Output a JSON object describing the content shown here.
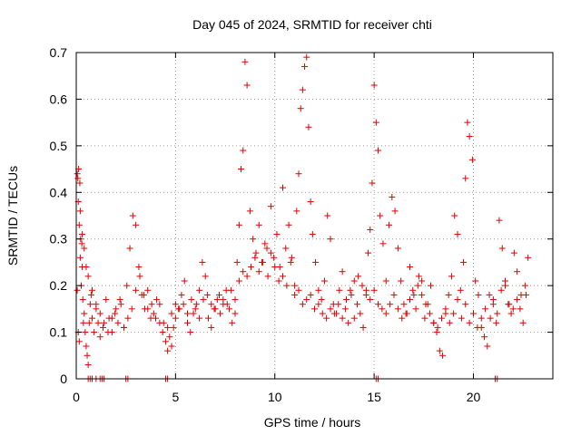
{
  "chart_data": {
    "type": "scatter",
    "title": "Day 045 of 2024, SRMTID for receiver chti",
    "xlabel": "GPS time / hours",
    "ylabel": "SRMTID / TECUs",
    "xlim": [
      0,
      24
    ],
    "ylim": [
      0,
      0.7
    ],
    "xticks": [
      0,
      5,
      10,
      15,
      20
    ],
    "yticks": [
      0,
      0.1,
      0.2,
      0.3,
      0.4,
      0.5,
      0.6,
      0.7
    ],
    "xtick_labels": [
      "0",
      "5",
      "10",
      "15",
      "20"
    ],
    "ytick_labels": [
      "0",
      "0.1",
      "0.2",
      "0.3",
      "0.4",
      "0.5",
      "0.6",
      "0.7"
    ],
    "grid": true,
    "marker": "+",
    "series": [
      {
        "name": "SRMTID",
        "color": "#e00000",
        "x": [
          0.05,
          0.08,
          0.1,
          0.12,
          0.15,
          0.18,
          0.2,
          0.22,
          0.25,
          0.28,
          0.3,
          0.33,
          0.36,
          0.4,
          0.45,
          0.5,
          0.55,
          0.6,
          0.65,
          0.7,
          0.75,
          0.8,
          0.9,
          1.0,
          1.1,
          1.2,
          1.35,
          1.5,
          1.65,
          1.8,
          1.95,
          2.1,
          2.25,
          2.4,
          2.55,
          2.7,
          2.85,
          3.0,
          3.15,
          3.3,
          3.45,
          3.6,
          3.75,
          3.9,
          4.05,
          4.2,
          4.35,
          4.5,
          4.6,
          4.7,
          4.8,
          4.9,
          5.0,
          5.15,
          5.3,
          5.45,
          5.6,
          5.75,
          5.9,
          6.05,
          6.2,
          6.35,
          6.5,
          6.65,
          6.8,
          6.95,
          7.1,
          7.25,
          7.4,
          7.55,
          7.7,
          7.85,
          8.0,
          8.1,
          8.2,
          8.3,
          8.4,
          8.5,
          8.6,
          8.75,
          8.9,
          9.05,
          9.2,
          9.35,
          9.5,
          9.65,
          9.8,
          9.95,
          10.1,
          10.25,
          10.4,
          10.55,
          10.7,
          10.85,
          11.0,
          11.1,
          11.2,
          11.3,
          11.4,
          11.5,
          11.6,
          11.7,
          11.8,
          11.9,
          12.05,
          12.2,
          12.35,
          12.5,
          12.65,
          12.8,
          12.95,
          13.1,
          13.25,
          13.4,
          13.55,
          13.7,
          13.85,
          14.0,
          14.15,
          14.3,
          14.45,
          14.6,
          14.7,
          14.8,
          14.9,
          15.0,
          15.1,
          15.2,
          15.3,
          15.45,
          15.6,
          15.75,
          15.9,
          16.05,
          16.2,
          16.35,
          16.5,
          16.65,
          16.8,
          16.95,
          17.1,
          17.25,
          17.4,
          17.55,
          17.7,
          17.85,
          18.0,
          18.15,
          18.3,
          18.45,
          18.6,
          18.75,
          18.9,
          19.05,
          19.2,
          19.35,
          19.5,
          19.6,
          19.7,
          19.8,
          19.95,
          20.1,
          20.25,
          20.4,
          20.55,
          20.7,
          20.85,
          21.0,
          21.15,
          21.3,
          21.45,
          21.6,
          21.75,
          21.9,
          22.05,
          22.2,
          22.35,
          22.5,
          22.65,
          22.75,
          0.05,
          0.1,
          0.15,
          0.2,
          0.3,
          0.4,
          0.5,
          0.6,
          0.8,
          1.0,
          1.2,
          1.4,
          1.6,
          1.8,
          2.0,
          2.2,
          2.4,
          2.6,
          2.8,
          3.0,
          3.2,
          3.4,
          3.6,
          3.8,
          4.0,
          4.2,
          4.4,
          4.6,
          4.8,
          5.0,
          5.2,
          5.4,
          5.6,
          5.8,
          6.0,
          6.2,
          6.4,
          6.6,
          6.8,
          7.0,
          7.2,
          7.4,
          7.6,
          7.8,
          8.0,
          8.2,
          8.4,
          8.6,
          8.8,
          9.0,
          9.2,
          9.4,
          9.6,
          9.8,
          10.0,
          10.2,
          10.4,
          10.6,
          10.8,
          11.0,
          11.2,
          11.4,
          11.6,
          11.8,
          12.0,
          12.2,
          12.4,
          12.6,
          12.8,
          13.0,
          13.2,
          13.4,
          13.6,
          13.8,
          14.0,
          14.2,
          14.4,
          14.6,
          14.8,
          15.0,
          15.2,
          15.4,
          15.6,
          15.8,
          16.0,
          16.2,
          16.4,
          16.6,
          16.8,
          17.0,
          17.2,
          17.4,
          17.6,
          17.8,
          18.0,
          18.2,
          18.4,
          18.6,
          18.8,
          19.0,
          19.2,
          19.4,
          19.6,
          19.8,
          20.0,
          20.2,
          20.4,
          20.6,
          20.8,
          21.0,
          21.2,
          21.4,
          21.6,
          21.8,
          22.0,
          22.2,
          22.4,
          22.6,
          0.6,
          0.7,
          0.8,
          1.0,
          1.2,
          1.3,
          1.4,
          2.5,
          2.6,
          4.5,
          4.6,
          15.1,
          15.2,
          21.1,
          21.2
        ],
        "y": [
          0.44,
          0.43,
          0.38,
          0.45,
          0.33,
          0.42,
          0.26,
          0.3,
          0.2,
          0.29,
          0.24,
          0.17,
          0.12,
          0.14,
          0.1,
          0.07,
          0.05,
          0.03,
          0.12,
          0.16,
          0.18,
          0.13,
          0.1,
          0.15,
          0.12,
          0.09,
          0.11,
          0.17,
          0.13,
          0.1,
          0.14,
          0.12,
          0.16,
          0.11,
          0.2,
          0.28,
          0.35,
          0.33,
          0.24,
          0.18,
          0.15,
          0.19,
          0.13,
          0.14,
          0.17,
          0.12,
          0.1,
          0.08,
          0.06,
          0.09,
          0.07,
          0.11,
          0.13,
          0.15,
          0.18,
          0.21,
          0.12,
          0.1,
          0.14,
          0.16,
          0.19,
          0.25,
          0.22,
          0.13,
          0.11,
          0.15,
          0.17,
          0.14,
          0.16,
          0.19,
          0.15,
          0.12,
          0.17,
          0.25,
          0.33,
          0.45,
          0.49,
          0.68,
          0.63,
          0.36,
          0.3,
          0.27,
          0.33,
          0.25,
          0.29,
          0.22,
          0.37,
          0.26,
          0.31,
          0.24,
          0.41,
          0.28,
          0.33,
          0.26,
          0.2,
          0.36,
          0.44,
          0.58,
          0.62,
          0.67,
          0.69,
          0.54,
          0.38,
          0.31,
          0.25,
          0.19,
          0.17,
          0.21,
          0.35,
          0.3,
          0.16,
          0.14,
          0.19,
          0.23,
          0.15,
          0.12,
          0.18,
          0.13,
          0.16,
          0.14,
          0.11,
          0.19,
          0.27,
          0.32,
          0.42,
          0.63,
          0.55,
          0.49,
          0.35,
          0.29,
          0.21,
          0.33,
          0.39,
          0.36,
          0.28,
          0.21,
          0.16,
          0.14,
          0.24,
          0.19,
          0.15,
          0.22,
          0.18,
          0.13,
          0.16,
          0.2,
          0.12,
          0.1,
          0.06,
          0.05,
          0.14,
          0.18,
          0.22,
          0.35,
          0.31,
          0.19,
          0.25,
          0.43,
          0.55,
          0.52,
          0.47,
          0.21,
          0.18,
          0.11,
          0.09,
          0.07,
          0.13,
          0.16,
          0.12,
          0.34,
          0.28,
          0.2,
          0.16,
          0.14,
          0.27,
          0.23,
          0.15,
          0.12,
          0.18,
          0.26,
          0.19,
          0.1,
          0.08,
          0.36,
          0.31,
          0.28,
          0.24,
          0.22,
          0.19,
          0.16,
          0.14,
          0.12,
          0.1,
          0.13,
          0.15,
          0.17,
          0.11,
          0.13,
          0.15,
          0.19,
          0.22,
          0.18,
          0.15,
          0.16,
          0.13,
          0.16,
          0.12,
          0.11,
          0.14,
          0.16,
          0.15,
          0.16,
          0.14,
          0.17,
          0.15,
          0.13,
          0.17,
          0.18,
          0.16,
          0.15,
          0.18,
          0.17,
          0.16,
          0.19,
          0.14,
          0.21,
          0.23,
          0.22,
          0.24,
          0.26,
          0.23,
          0.25,
          0.28,
          0.27,
          0.24,
          0.21,
          0.22,
          0.2,
          0.25,
          0.18,
          0.19,
          0.16,
          0.17,
          0.18,
          0.15,
          0.16,
          0.14,
          0.13,
          0.15,
          0.14,
          0.16,
          0.13,
          0.17,
          0.19,
          0.21,
          0.22,
          0.2,
          0.18,
          0.17,
          0.19,
          0.16,
          0.15,
          0.14,
          0.16,
          0.18,
          0.15,
          0.13,
          0.14,
          0.17,
          0.18,
          0.2,
          0.21,
          0.16,
          0.14,
          0.12,
          0.11,
          0.13,
          0.15,
          0.12,
          0.14,
          0.17,
          0.13,
          0.16,
          0.12,
          0.14,
          0.11,
          0.13,
          0.15,
          0.18,
          0.17,
          0.14,
          0.19,
          0.21,
          0.16,
          0.15,
          0.17,
          0.18,
          0.2,
          0.0,
          0.0,
          0.0,
          0.0,
          0.0,
          0.0,
          0.0,
          0.0,
          0.0,
          0.0,
          0.0,
          0.0,
          0.0,
          0.0,
          0.0
        ]
      }
    ]
  }
}
